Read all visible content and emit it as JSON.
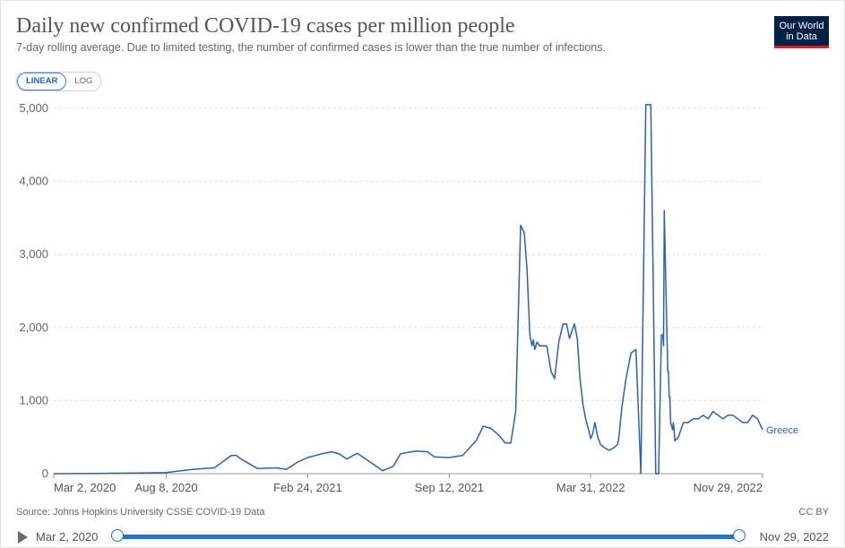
{
  "title": "Daily new confirmed COVID-19 cases per million people",
  "subtitle": "7-day rolling average. Due to limited testing, the number of confirmed cases is lower than the true number of infections.",
  "logo": {
    "line1": "Our World",
    "line2": "in Data"
  },
  "scale_toggle": {
    "linear": "LINEAR",
    "log": "LOG",
    "selected": "LINEAR"
  },
  "source": "Source: Johns Hopkins University CSSE COVID-19 Data",
  "license": "CC BY",
  "timeline": {
    "start": "Mar 2, 2020",
    "end": "Nov 29, 2022"
  },
  "colors": {
    "series": "#2e62a7",
    "grid": "#dddddd",
    "timeline": "#2573d3"
  },
  "chart_data": {
    "type": "line",
    "title": "Daily new confirmed COVID-19 cases per million people",
    "xlabel": "",
    "ylabel": "",
    "xlim": [
      "2020-03-02",
      "2022-11-29"
    ],
    "ylim": [
      0,
      5000
    ],
    "yticks": [
      0,
      1000,
      2000,
      3000,
      4000,
      5000
    ],
    "ytick_labels": [
      "0",
      "1,000",
      "2,000",
      "3,000",
      "4,000",
      "5,000"
    ],
    "xticks": [
      "2020-03-02",
      "2020-08-08",
      "2021-02-24",
      "2021-09-12",
      "2022-03-31",
      "2022-11-29"
    ],
    "xtick_labels": [
      "Mar 2, 2020",
      "Aug 8, 2020",
      "Feb 24, 2021",
      "Sep 12, 2021",
      "Mar 31, 2022",
      "Nov 29, 2022"
    ],
    "grid": true,
    "series": [
      {
        "name": "Greece",
        "x": [
          "2020-03-02",
          "2020-05-01",
          "2020-07-01",
          "2020-08-08",
          "2020-09-15",
          "2020-10-15",
          "2020-10-25",
          "2020-11-08",
          "2020-11-15",
          "2020-11-22",
          "2020-12-15",
          "2021-01-10",
          "2021-01-25",
          "2021-02-10",
          "2021-02-24",
          "2021-03-15",
          "2021-03-30",
          "2021-04-10",
          "2021-04-20",
          "2021-05-05",
          "2021-05-20",
          "2021-06-10",
          "2021-06-25",
          "2021-07-05",
          "2021-07-15",
          "2021-07-28",
          "2021-08-12",
          "2021-08-22",
          "2021-09-12",
          "2021-10-01",
          "2021-10-20",
          "2021-10-30",
          "2021-11-10",
          "2021-11-22",
          "2021-11-30",
          "2021-12-08",
          "2021-12-15",
          "2021-12-22",
          "2021-12-27",
          "2021-12-31",
          "2022-01-04",
          "2022-01-07",
          "2022-01-09",
          "2022-01-11",
          "2022-01-14",
          "2022-01-18",
          "2022-01-23",
          "2022-01-28",
          "2022-02-03",
          "2022-02-08",
          "2022-02-14",
          "2022-02-20",
          "2022-02-25",
          "2022-03-01",
          "2022-03-08",
          "2022-03-12",
          "2022-03-16",
          "2022-03-20",
          "2022-03-24",
          "2022-03-28",
          "2022-03-31",
          "2022-04-03",
          "2022-04-06",
          "2022-04-10",
          "2022-04-14",
          "2022-04-20",
          "2022-04-26",
          "2022-05-02",
          "2022-05-08",
          "2022-05-10",
          "2022-05-14",
          "2022-05-20",
          "2022-05-27",
          "2022-06-03",
          "2022-06-10",
          "2022-06-17",
          "2022-06-24",
          "2022-07-01",
          "2022-07-05",
          "2022-07-09",
          "2022-07-11",
          "2022-07-12",
          "2022-07-13",
          "2022-07-18",
          "2022-07-19",
          "2022-07-20",
          "2022-07-21",
          "2022-07-22",
          "2022-07-25",
          "2022-07-26",
          "2022-07-27",
          "2022-07-28",
          "2022-08-02",
          "2022-08-09",
          "2022-08-16",
          "2022-08-23",
          "2022-08-30",
          "2022-09-06",
          "2022-09-13",
          "2022-09-20",
          "2022-09-27",
          "2022-10-04",
          "2022-10-11",
          "2022-10-18",
          "2022-10-25",
          "2022-11-01",
          "2022-11-08",
          "2022-11-15",
          "2022-11-22",
          "2022-11-29"
        ],
        "values": [
          0,
          3,
          10,
          15,
          60,
          80,
          150,
          250,
          250,
          200,
          70,
          80,
          60,
          160,
          220,
          270,
          300,
          270,
          200,
          280,
          180,
          40,
          100,
          270,
          290,
          310,
          300,
          230,
          220,
          250,
          450,
          650,
          620,
          520,
          420,
          420,
          850,
          3400,
          3300,
          2800,
          1900,
          1750,
          1830,
          1700,
          1800,
          1750,
          1750,
          1750,
          1400,
          1300,
          1800,
          2050,
          2050,
          1850,
          2050,
          1850,
          1300,
          950,
          750,
          600,
          480,
          550,
          700,
          500,
          400,
          350,
          320,
          350,
          400,
          500,
          900,
          1300,
          1650,
          1700,
          0,
          5050,
          5050,
          0,
          0,
          1900,
          1900,
          1750,
          3600,
          1400,
          1400,
          1050,
          1050,
          700,
          600,
          700,
          600,
          450,
          500,
          700,
          700,
          750,
          750,
          800,
          750,
          850,
          800,
          750,
          800,
          800,
          750,
          700,
          700,
          800,
          750,
          600
        ]
      }
    ],
    "legend": "end-of-line label"
  }
}
